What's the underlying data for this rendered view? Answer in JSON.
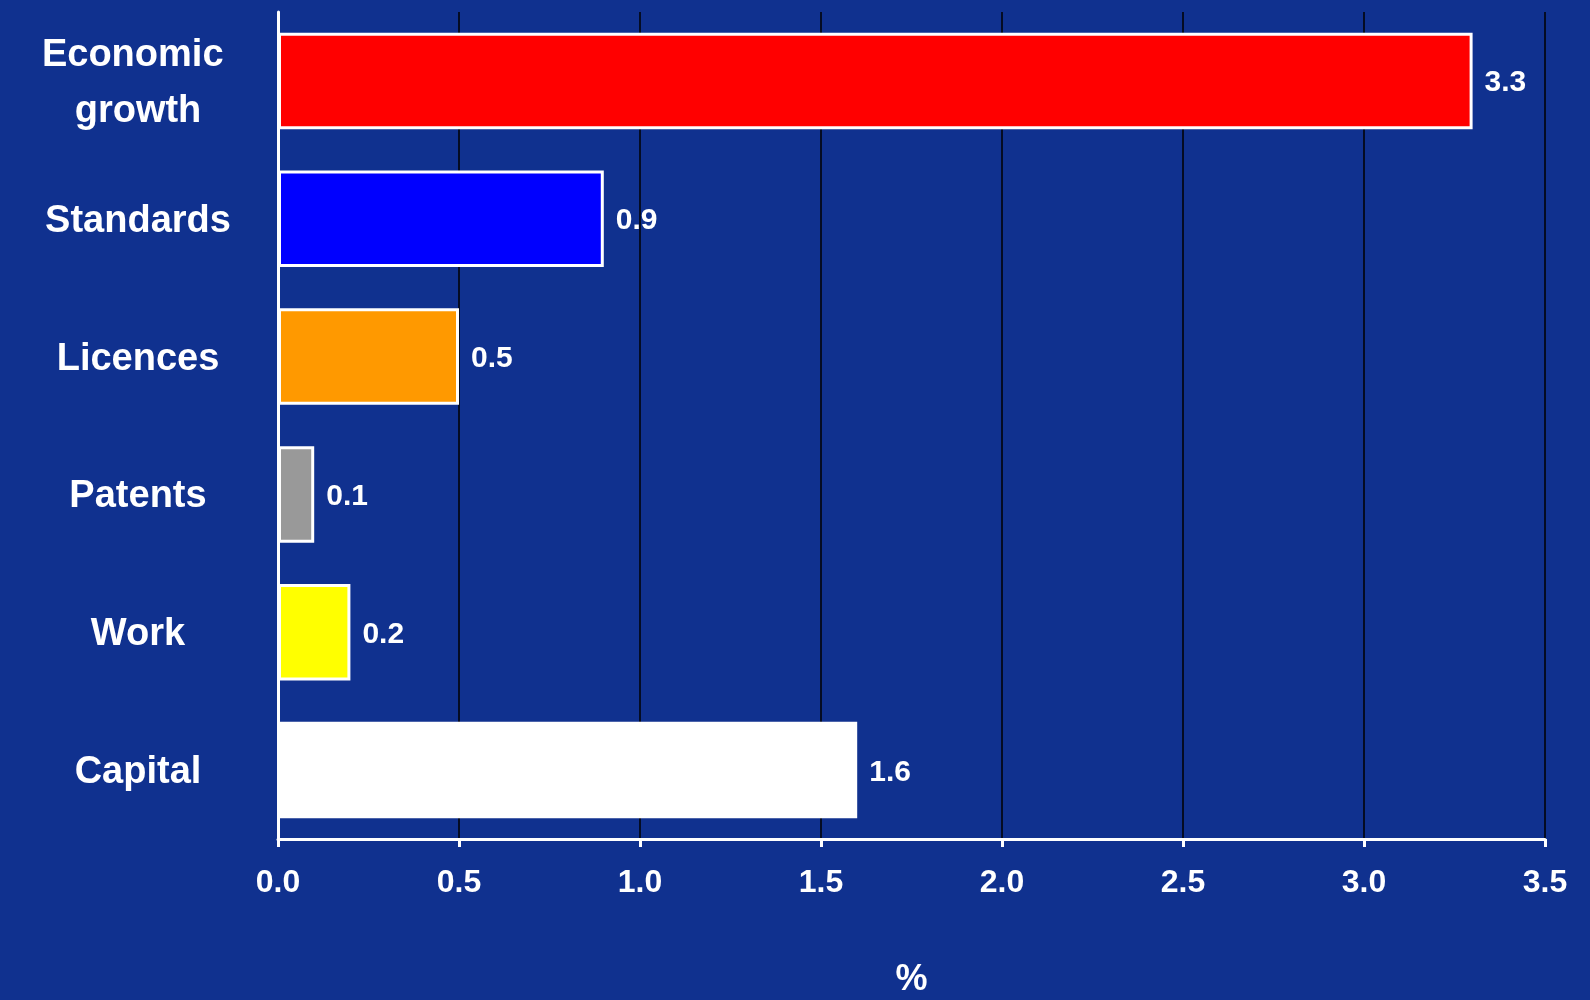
{
  "chart_data": {
    "type": "bar",
    "orientation": "horizontal",
    "xlabel": "%",
    "categories": [
      "Economic growth",
      "Standards",
      "Licences",
      "Patents",
      "Work",
      "Capital"
    ],
    "values": [
      3.3,
      0.9,
      0.5,
      0.1,
      0.2,
      1.6
    ],
    "colors": [
      "#ff0000",
      "#0000ff",
      "#ff9900",
      "#999999",
      "#ffff00",
      "#ffffff"
    ],
    "xlim": [
      0,
      3.5
    ],
    "xticks": [
      {
        "value": 0,
        "label": "0.0"
      },
      {
        "value": 0.5,
        "label": "0.5"
      },
      {
        "value": 1,
        "label": "1.0"
      },
      {
        "value": 1.5,
        "label": "1.5"
      },
      {
        "value": 2,
        "label": "2.0"
      },
      {
        "value": 2.5,
        "label": "2.5"
      },
      {
        "value": 3,
        "label": "3.0"
      },
      {
        "value": 3.5,
        "label": "3.5"
      }
    ],
    "grid": "x",
    "data_labels": true
  }
}
